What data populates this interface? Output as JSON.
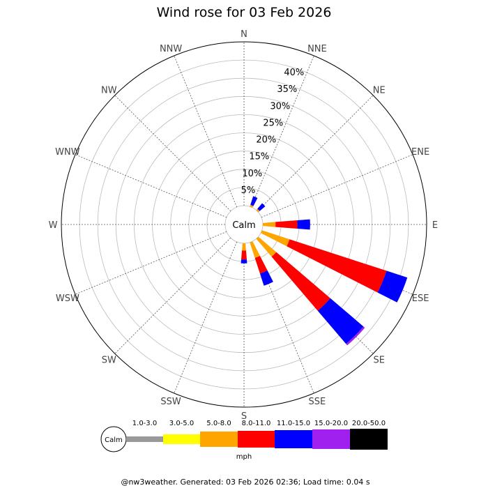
{
  "chart_data": {
    "type": "wind-rose",
    "title": "Wind rose for 03 Feb 2026",
    "directions": [
      "N",
      "NNE",
      "NE",
      "ENE",
      "E",
      "ESE",
      "SE",
      "SSE",
      "S",
      "SSW",
      "SW",
      "WSW",
      "W",
      "WNW",
      "NW",
      "NNW"
    ],
    "radial_ticks": [
      "5%",
      "10%",
      "15%",
      "20%",
      "25%",
      "30%",
      "35%",
      "40%"
    ],
    "radial_max": 45,
    "calm_label": "Calm",
    "bins": [
      "1.0-3.0",
      "3.0-5.0",
      "5.0-8.0",
      "8.0-11.0",
      "11.0-15.0",
      "15.0-20.0",
      "20.0-50.0"
    ],
    "bin_colors": [
      "#999999",
      "#ffff00",
      "#ffa500",
      "#ff0000",
      "#0000ff",
      "#a020f0",
      "#000000"
    ],
    "unit": "mph",
    "series": [
      {
        "direction": "NNE",
        "cumulative": [
          0,
          0,
          0.5,
          0.5,
          3.0,
          3.0,
          3.0
        ]
      },
      {
        "direction": "NE",
        "cumulative": [
          0,
          0,
          0.5,
          0.5,
          2.5,
          2.5,
          2.5
        ]
      },
      {
        "direction": "E",
        "cumulative": [
          0,
          0,
          3.5,
          9.5,
          13.0,
          13.0,
          13.0
        ]
      },
      {
        "direction": "ESE",
        "cumulative": [
          0,
          0,
          8.0,
          36.0,
          42.0,
          42.0,
          42.0
        ]
      },
      {
        "direction": "SE",
        "cumulative": [
          0,
          0,
          6.5,
          26.0,
          38.0,
          38.5,
          38.5
        ]
      },
      {
        "direction": "SSE",
        "cumulative": [
          0,
          0,
          4.5,
          9.0,
          12.5,
          12.5,
          12.5
        ]
      },
      {
        "direction": "S",
        "cumulative": [
          0,
          0,
          2.0,
          4.5,
          5.5,
          5.5,
          5.5
        ]
      }
    ],
    "footer": "@nw3weather. Generated: 03 Feb 2026 02:36; Load time: 0.04 s"
  }
}
